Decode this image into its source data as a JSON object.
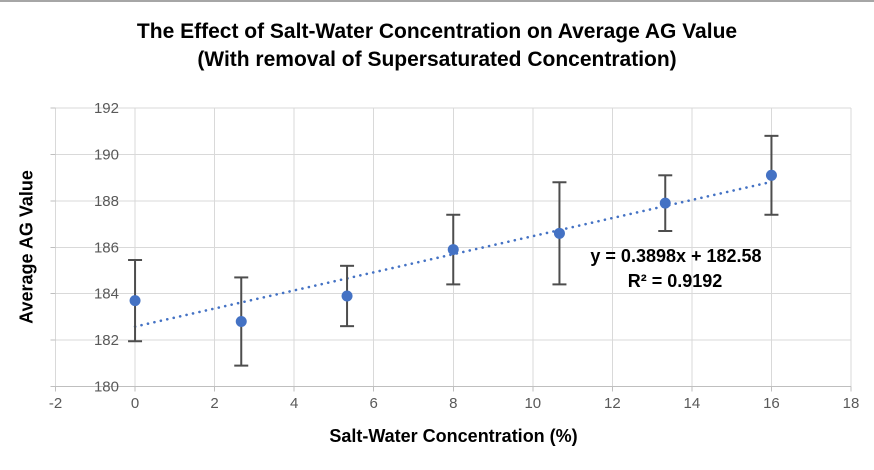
{
  "chart_data": {
    "type": "scatter",
    "title": "The Effect of Salt-Water Concentration on Average AG Value",
    "subtitle": "(With removal of Supersaturated Concentration)",
    "xlabel": "Salt-Water Concentration (%)",
    "ylabel": "Average AG Value",
    "xlim": [
      -2,
      18
    ],
    "ylim": [
      180,
      192
    ],
    "xticks": [
      -2,
      0,
      2,
      4,
      6,
      8,
      10,
      12,
      14,
      16,
      18
    ],
    "yticks": [
      180,
      182,
      184,
      186,
      188,
      190,
      192
    ],
    "grid": true,
    "legend": "none",
    "series": [
      {
        "name": "Average AG Value",
        "marker": "circle",
        "points": [
          {
            "x": 0,
            "y": 183.7,
            "yerr": 1.75
          },
          {
            "x": 2.67,
            "y": 182.8,
            "yerr": 1.9
          },
          {
            "x": 5.33,
            "y": 183.9,
            "yerr": 1.3
          },
          {
            "x": 8,
            "y": 185.9,
            "yerr": 1.5
          },
          {
            "x": 10.67,
            "y": 186.6,
            "yerr": 2.2
          },
          {
            "x": 13.33,
            "y": 187.9,
            "yerr": 1.2
          },
          {
            "x": 16,
            "y": 189.1,
            "yerr": 1.7
          }
        ]
      }
    ],
    "trendline": {
      "slope": 0.3898,
      "intercept": 182.58,
      "x_start": 0,
      "x_end": 16,
      "style": "dotted",
      "equation_label": "y = 0.3898x + 182.58",
      "r_squared_label": "R² = 0.9192"
    },
    "colors": {
      "marker": "#4472C4",
      "trendline": "#4472C4",
      "error_bar": "#4d4d4d",
      "gridline": "#d9d9d9",
      "axis_line": "#bfbfbf",
      "tick_label": "#595959",
      "title": "#000000",
      "annotation": "#000000",
      "background": "#ffffff"
    }
  }
}
